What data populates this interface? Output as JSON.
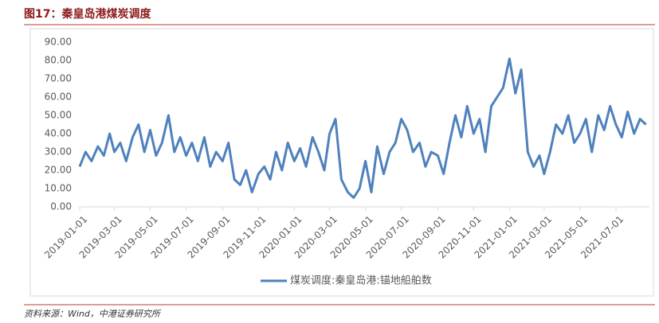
{
  "chart_data": {
    "type": "line",
    "title": "图17：秦皇岛港煤炭调度",
    "source": "资料来源：Wind，中港证券研究所",
    "x": [
      "2019-01-01",
      "2019-01-11",
      "2019-01-21",
      "2019-02-01",
      "2019-02-11",
      "2019-02-21",
      "2019-03-01",
      "2019-03-11",
      "2019-03-21",
      "2019-04-01",
      "2019-04-11",
      "2019-04-21",
      "2019-05-01",
      "2019-05-11",
      "2019-05-21",
      "2019-06-01",
      "2019-06-11",
      "2019-06-21",
      "2019-07-01",
      "2019-07-11",
      "2019-07-21",
      "2019-08-01",
      "2019-08-11",
      "2019-08-21",
      "2019-09-01",
      "2019-09-11",
      "2019-09-21",
      "2019-10-01",
      "2019-10-11",
      "2019-10-21",
      "2019-11-01",
      "2019-11-11",
      "2019-11-21",
      "2019-12-01",
      "2019-12-11",
      "2019-12-21",
      "2020-01-01",
      "2020-01-11",
      "2020-01-21",
      "2020-02-01",
      "2020-02-11",
      "2020-02-21",
      "2020-03-01",
      "2020-03-11",
      "2020-03-21",
      "2020-04-01",
      "2020-04-11",
      "2020-04-21",
      "2020-05-01",
      "2020-05-11",
      "2020-05-21",
      "2020-06-01",
      "2020-06-11",
      "2020-06-21",
      "2020-07-01",
      "2020-07-11",
      "2020-07-21",
      "2020-08-01",
      "2020-08-11",
      "2020-08-21",
      "2020-09-01",
      "2020-09-11",
      "2020-09-21",
      "2020-10-01",
      "2020-10-11",
      "2020-10-21",
      "2020-11-01",
      "2020-11-11",
      "2020-11-21",
      "2020-12-01",
      "2020-12-11",
      "2020-12-21",
      "2021-01-01",
      "2021-01-11",
      "2021-01-21",
      "2021-02-01",
      "2021-02-11",
      "2021-02-21",
      "2021-03-01",
      "2021-03-11",
      "2021-03-21",
      "2021-04-01",
      "2021-04-11",
      "2021-04-21",
      "2021-05-01",
      "2021-05-11",
      "2021-05-21",
      "2021-06-01",
      "2021-06-11",
      "2021-06-21",
      "2021-07-01",
      "2021-07-11",
      "2021-07-21",
      "2021-08-01",
      "2021-08-11",
      "2021-08-21"
    ],
    "series": [
      {
        "name": "煤炭调度:秦皇岛港:锚地船舶数",
        "color": "#4f81bd",
        "values": [
          22,
          30,
          25,
          33,
          28,
          40,
          30,
          35,
          25,
          38,
          45,
          30,
          42,
          28,
          35,
          50,
          30,
          38,
          28,
          35,
          25,
          38,
          22,
          30,
          25,
          35,
          15,
          12,
          20,
          8,
          18,
          22,
          15,
          30,
          20,
          35,
          25,
          32,
          22,
          38,
          30,
          20,
          40,
          48,
          15,
          8,
          5,
          10,
          25,
          8,
          33,
          18,
          30,
          35,
          48,
          42,
          30,
          35,
          22,
          30,
          28,
          18,
          35,
          50,
          38,
          55,
          40,
          48,
          30,
          55,
          60,
          65,
          81,
          62,
          75,
          30,
          22,
          28,
          18,
          30,
          45,
          40,
          50,
          35,
          40,
          48,
          30,
          50,
          42,
          55,
          45,
          38,
          52,
          40,
          48,
          45
        ]
      }
    ],
    "xlim": [
      "2019-01-01",
      "2021-08-27"
    ],
    "xticks": [
      "2019-01-01",
      "2019-03-01",
      "2019-05-01",
      "2019-07-01",
      "2019-09-01",
      "2019-11-01",
      "2020-01-01",
      "2020-03-01",
      "2020-05-01",
      "2020-07-01",
      "2020-09-01",
      "2020-11-01",
      "2021-01-01",
      "2021-03-01",
      "2021-05-01",
      "2021-07-01"
    ],
    "ylim": [
      0,
      90
    ],
    "yticks": [
      {
        "value": 0,
        "label": "0.00"
      },
      {
        "value": 10,
        "label": "10.00"
      },
      {
        "value": 20,
        "label": "20.00"
      },
      {
        "value": 30,
        "label": "30.00"
      },
      {
        "value": 40,
        "label": "40.00"
      },
      {
        "value": 50,
        "label": "50.00"
      },
      {
        "value": 60,
        "label": "60.00"
      },
      {
        "value": 70,
        "label": "70.00"
      },
      {
        "value": 80,
        "label": "80.00"
      },
      {
        "value": 90,
        "label": "90.00"
      }
    ]
  }
}
